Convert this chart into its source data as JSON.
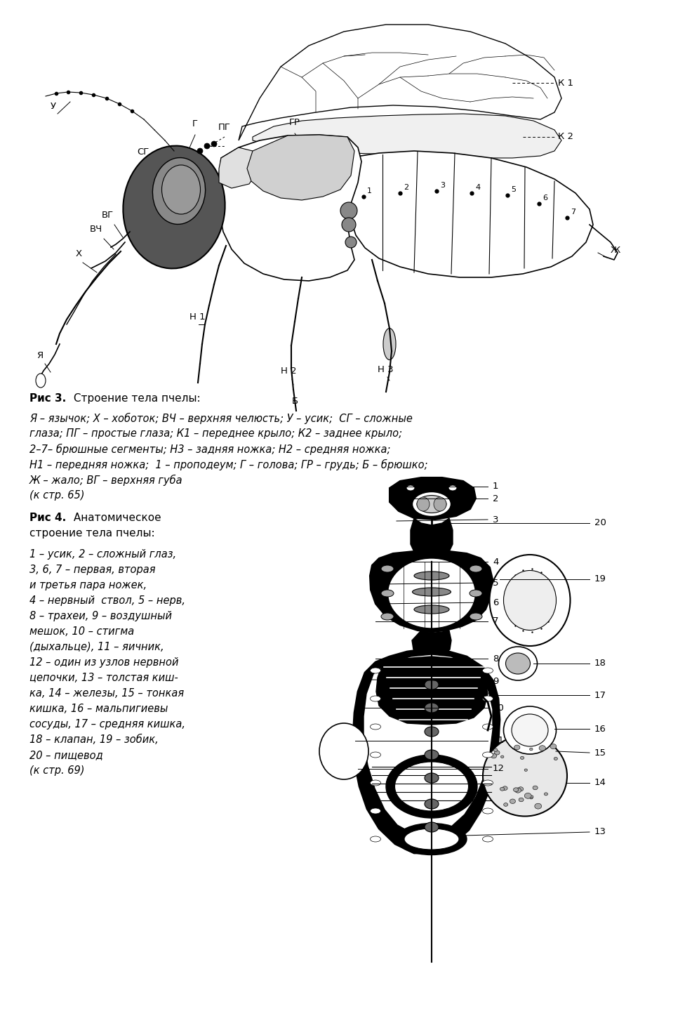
{
  "bg_color": "#ffffff",
  "fig_title1_bold": "Рис 3.",
  "fig_title1_rest": " Строение тела пчелы:",
  "fig_caption1_line1": "Я – язычок; Х – хоботок; ВЧ – верхняя челюсть; У – усик;  СГ – сложные",
  "fig_caption1_line2": "глаза; ПГ – простые глаза; К1 – переднее крыло; К2 – заднее крыло;",
  "fig_caption1_line3": "2–7– брюшные сегменты; Н3 – задняя ножка; Н2 – средняя ножка;",
  "fig_caption1_line4": "Н1 – передняя ножка;  1 – проподеум; Г – голова; ГР – грудь; Б – брюшко;",
  "fig_caption1_line5": "Ж – жало; ВГ – верхняя губа",
  "fig_caption1_line6": "(к стр. 65)",
  "fig_title2_bold": "Рис 4.",
  "fig_title2_rest": " Анатомическое",
  "fig_title2_line2": "строение тела пчелы:",
  "fig_caption2_line1": "1 – усик, 2 – сложный глаз,",
  "fig_caption2_line2": "3, 6, 7 – первая, вторая",
  "fig_caption2_line3": "и третья пара ножек,",
  "fig_caption2_line4": "4 – нервный  ствол, 5 – нерв,",
  "fig_caption2_line5": "8 – трахеи, 9 – воздушный",
  "fig_caption2_line6": "мешок, 10 – стигма",
  "fig_caption2_line7": "(дыхальце), 11 – яичник,",
  "fig_caption2_line8": "12 – один из узлов нервной",
  "fig_caption2_line9": "цепочки, 13 – толстая киш-",
  "fig_caption2_line10": "ка, 14 – железы, 15 – тонкая",
  "fig_caption2_line11": "кишка, 16 – мальпигиевы",
  "fig_caption2_line12": "сосуды, 17 – средняя кишка,",
  "fig_caption2_line13": "18 – клапан, 19 – зобик,",
  "fig_caption2_line14": "20 – пищевод",
  "fig_caption2_line15": "(к стр. 69)"
}
